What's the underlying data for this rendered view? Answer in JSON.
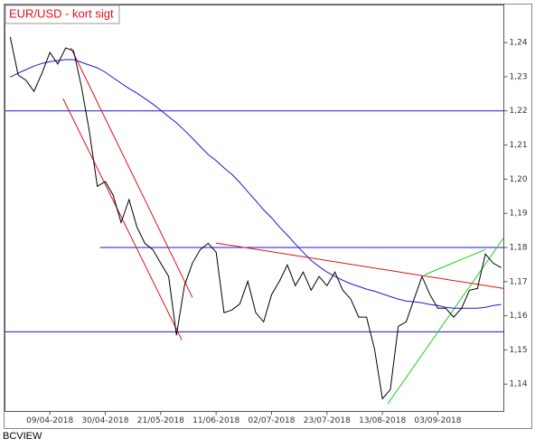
{
  "chart_data": {
    "type": "line",
    "title": "EUR/USD - kort sigt",
    "footer": "BCVIEW",
    "x": [
      "25/03-2018",
      "28/03-2018",
      "31/03-2018",
      "03/04-2018",
      "06/04-2018",
      "09/04-2018",
      "12/04-2018",
      "15/04-2018",
      "18/04-2018",
      "21/04-2018",
      "24/04-2018",
      "27/04-2018",
      "30/04-2018",
      "03/05-2018",
      "06/05-2018",
      "09/05-2018",
      "12/05-2018",
      "15/05-2018",
      "18/05-2018",
      "21/05-2018",
      "24/05-2018",
      "27/05-2018",
      "30/05-2018",
      "02/06-2018",
      "05/06-2018",
      "08/06-2018",
      "11/06-2018",
      "14/06-2018",
      "17/06-2018",
      "20/06-2018",
      "23/06-2018",
      "26/06-2018",
      "29/06-2018",
      "02/07-2018",
      "05/07-2018",
      "08/07-2018",
      "11/07-2018",
      "14/07-2018",
      "17/07-2018",
      "20/07-2018",
      "23/07-2018",
      "26/07-2018",
      "29/07-2018",
      "01/08-2018",
      "04/08-2018",
      "07/08-2018",
      "10/08-2018",
      "13/08-2018",
      "16/08-2018",
      "19/08-2018",
      "22/08-2018",
      "25/08-2018",
      "28/08-2018",
      "31/08-2018",
      "03/09-2018",
      "06/09-2018",
      "09/09-2018",
      "12/09-2018",
      "15/09-2018",
      "18/09-2018",
      "21/09-2018",
      "24/09-2018",
      "27/09-2018"
    ],
    "series": [
      {
        "color": "#000000",
        "values": [
          1.2416,
          1.2305,
          1.2289,
          1.2257,
          1.231,
          1.2371,
          1.2337,
          1.2384,
          1.2376,
          1.227,
          1.2138,
          1.1979,
          1.1993,
          1.1953,
          1.1873,
          1.194,
          1.186,
          1.1812,
          1.1794,
          1.1754,
          1.1715,
          1.1543,
          1.1688,
          1.1754,
          1.1794,
          1.1812,
          1.1786,
          1.1609,
          1.1617,
          1.1635,
          1.1701,
          1.1609,
          1.1582,
          1.1662,
          1.1701,
          1.1749,
          1.1688,
          1.1728,
          1.1675,
          1.1715,
          1.1688,
          1.1728,
          1.1675,
          1.1649,
          1.1596,
          1.1596,
          1.1503,
          1.1357,
          1.1384,
          1.1569,
          1.1582,
          1.1649,
          1.1715,
          1.1662,
          1.1622,
          1.1622,
          1.1596,
          1.1622,
          1.1675,
          1.168,
          1.1781,
          1.1754,
          1.1741
        ]
      },
      {
        "color": "#1a1acc",
        "values": [
          1.2299,
          1.231,
          1.2321,
          1.2331,
          1.2339,
          1.2344,
          1.2347,
          1.235,
          1.235,
          1.2342,
          1.2334,
          1.2326,
          1.2313,
          1.2297,
          1.2281,
          1.2265,
          1.2252,
          1.2236,
          1.222,
          1.2202,
          1.2183,
          1.2165,
          1.2143,
          1.212,
          1.2096,
          1.2072,
          1.2054,
          1.2033,
          1.2014,
          1.199,
          1.1963,
          1.1937,
          1.191,
          1.1887,
          1.186,
          1.1836,
          1.181,
          1.1786,
          1.1762,
          1.1744,
          1.1728,
          1.1715,
          1.1704,
          1.1694,
          1.1686,
          1.1678,
          1.1672,
          1.1664,
          1.1656,
          1.1649,
          1.1643,
          1.1641,
          1.1638,
          1.1633,
          1.163,
          1.1625,
          1.1622,
          1.1622,
          1.1622,
          1.1622,
          1.1625,
          1.163,
          1.1633
        ]
      }
    ],
    "lines": [
      {
        "color": "#1a1acc",
        "x": [
          "23/03-2018",
          "28/09-2018"
        ],
        "values": [
          1.22,
          1.22
        ]
      },
      {
        "color": "#1a1acc",
        "x": [
          "28/04-2018",
          "28/09-2018"
        ],
        "values": [
          1.18,
          1.18
        ]
      },
      {
        "color": "#1a1acc",
        "x": [
          "23/03-2018",
          "28/09-2018"
        ],
        "values": [
          1.1553,
          1.1553
        ]
      },
      {
        "color": "#e01010",
        "x": [
          "14/04-2018",
          "29/05-2018"
        ],
        "values": [
          1.2236,
          1.1529
        ]
      },
      {
        "color": "#e01010",
        "x": [
          "17/04-2018",
          "02/06-2018"
        ],
        "values": [
          1.2384,
          1.1654
        ]
      },
      {
        "color": "#e01010",
        "x": [
          "11/06-2018",
          "28/09-2018"
        ],
        "values": [
          1.1813,
          1.168
        ]
      },
      {
        "color": "#22cc22",
        "x": [
          "15/08-2018",
          "28/09-2018"
        ],
        "values": [
          1.1342,
          1.1829
        ]
      },
      {
        "color": "#22cc22",
        "x": [
          "29/08-2018",
          "21/09-2018"
        ],
        "values": [
          1.172,
          1.1794
        ]
      }
    ],
    "xlim": [
      "23/03-2018",
      "28/09-2018"
    ],
    "xticks": [
      "09/04-2018",
      "30/04-2018",
      "21/05-2018",
      "11/06-2018",
      "02/07-2018",
      "23/07-2018",
      "13/08-2018",
      "03/09-2018"
    ],
    "ylim": [
      1.132,
      1.251
    ],
    "yticks": [
      {
        "value": 1.14,
        "label": "1,14"
      },
      {
        "value": 1.15,
        "label": "1,15"
      },
      {
        "value": 1.16,
        "label": "1,16"
      },
      {
        "value": 1.17,
        "label": "1,17"
      },
      {
        "value": 1.18,
        "label": "1,18"
      },
      {
        "value": 1.19,
        "label": "1,19"
      },
      {
        "value": 1.2,
        "label": "1,20"
      },
      {
        "value": 1.21,
        "label": "1,21"
      },
      {
        "value": 1.22,
        "label": "1,22"
      },
      {
        "value": 1.23,
        "label": "1,23"
      },
      {
        "value": 1.24,
        "label": "1,24"
      }
    ]
  }
}
